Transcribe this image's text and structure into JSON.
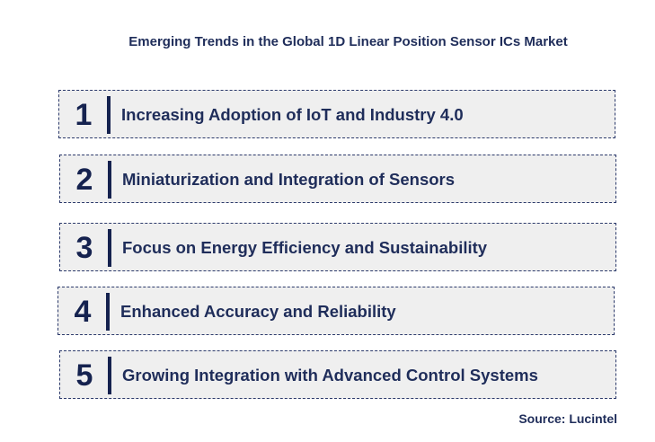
{
  "title": "Emerging Trends in the Global 1D Linear Position Sensor ICs Market",
  "trends": [
    {
      "number": "1",
      "label": "Increasing Adoption of IoT and Industry 4.0"
    },
    {
      "number": "2",
      "label": "Miniaturization and Integration of Sensors"
    },
    {
      "number": "3",
      "label": "Focus on Energy Efficiency and Sustainability"
    },
    {
      "number": "4",
      "label": "Enhanced Accuracy and Reliability"
    },
    {
      "number": "5",
      "label": "Growing Integration with Advanced Control Systems"
    }
  ],
  "source": "Source: Lucintel",
  "colors": {
    "text": "#1f2d5a",
    "number": "#15224f",
    "box_fill": "#efefef",
    "box_border": "#2c3a6b"
  }
}
